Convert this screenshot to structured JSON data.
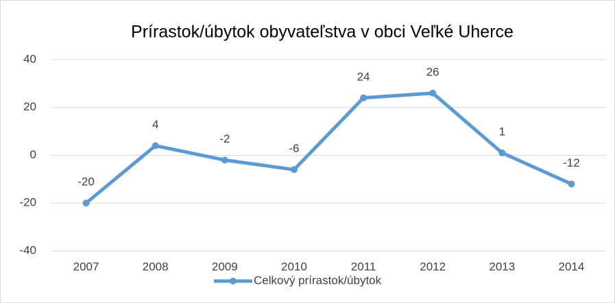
{
  "chart_data": {
    "type": "line",
    "title": "Prírastok/úbytok obyvateľstva v obci Veľké Uherce",
    "categories": [
      "2007",
      "2008",
      "2009",
      "2010",
      "2011",
      "2012",
      "2013",
      "2014"
    ],
    "series": [
      {
        "name": "Celkový prírastok/úbytok",
        "color": "#5b9bd5",
        "values": [
          -20,
          4,
          -2,
          -6,
          24,
          26,
          1,
          -12
        ]
      }
    ],
    "ylim": [
      -40,
      40
    ],
    "yticks": [
      -40,
      -20,
      0,
      20,
      40
    ],
    "grid": true,
    "legend": "bottom"
  }
}
